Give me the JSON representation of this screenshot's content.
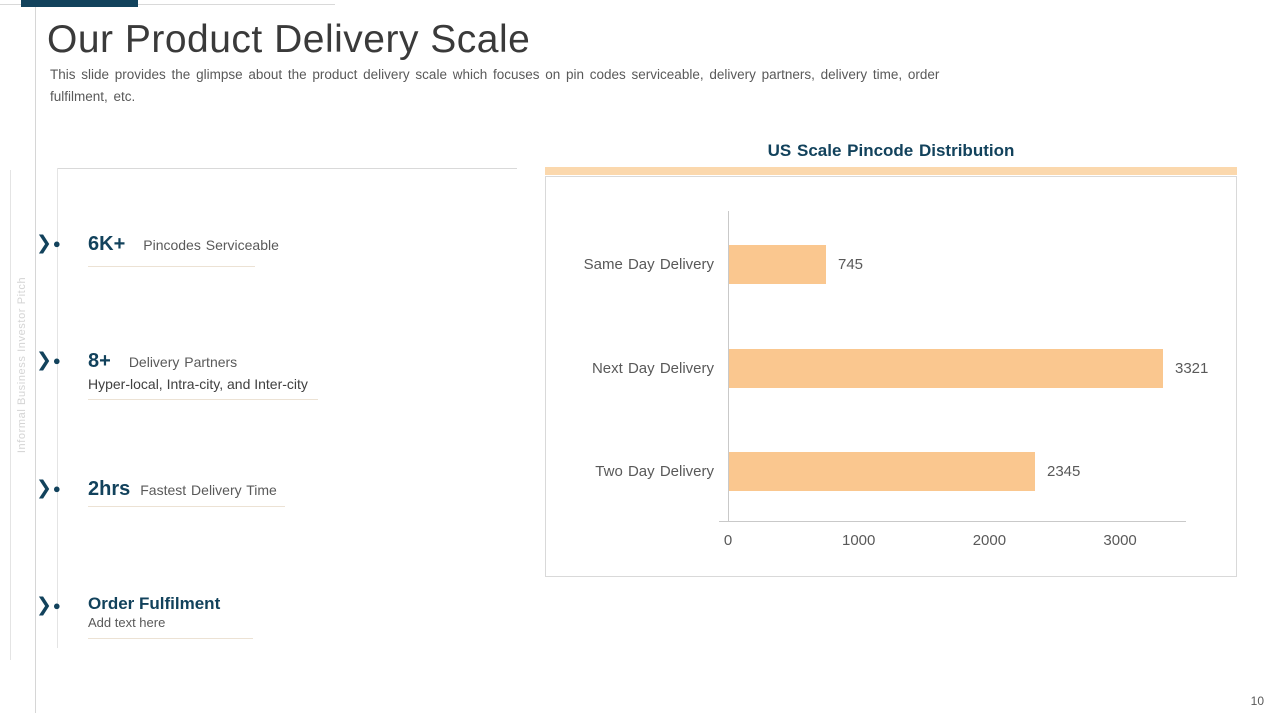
{
  "slide": {
    "page_number": "10",
    "side_label": "Informal Business Investor Pitch"
  },
  "header": {
    "title": "Our Product Delivery Scale",
    "subtitle": "This slide provides the glimpse about the product delivery scale which focuses on pin codes serviceable, delivery partners, delivery time, order fulfilment, etc."
  },
  "stats": [
    {
      "value": "6K+",
      "label": "Pincodes Serviceable"
    },
    {
      "value": "8+",
      "label": "Delivery Partners",
      "subtext": "Hyper-local, Intra-city, and Inter-city"
    },
    {
      "value": "2hrs",
      "label": "Fastest Delivery Time"
    },
    {
      "value": "Order Fulfilment",
      "subtext": "Add text here"
    }
  ],
  "chart_data": {
    "type": "bar",
    "orientation": "horizontal",
    "title": "US Scale Pincode Distribution",
    "categories": [
      "Same Day Delivery",
      "Next Day Delivery",
      "Two Day Delivery"
    ],
    "values": [
      745,
      3321,
      2345
    ],
    "xticks": [
      0,
      1000,
      2000,
      3000
    ],
    "xlim": [
      0,
      3500
    ],
    "grid": false,
    "legend": "none",
    "bar_color": "#fac78f",
    "accent_color": "#fbd8ad"
  },
  "colors": {
    "navy": "#12425c",
    "bar_peach": "#fac78f",
    "accent_peach": "#fbd8ad",
    "text_gray": "#595959"
  }
}
